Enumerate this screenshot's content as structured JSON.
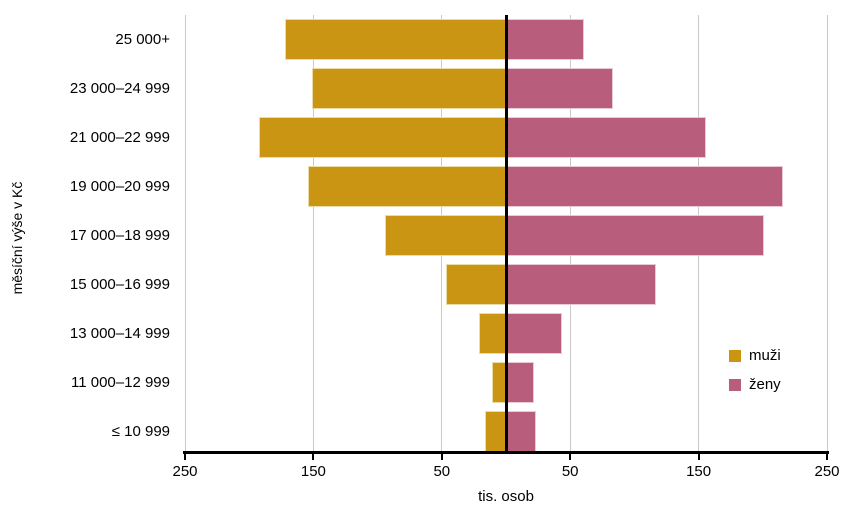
{
  "chart_data": {
    "type": "bar",
    "variant": "population-pyramid-horizontal",
    "title": "",
    "ylabel": "měsíční výše v Kč",
    "xlabel": "tis. osob",
    "categories": [
      "25 000+",
      "23 000–24 999",
      "21 000–22 999",
      "19 000–20 999",
      "17 000–18 999",
      "15 000–16 999",
      "13 000–14 999",
      "11 000–12 999",
      "≤ 10 999"
    ],
    "series": [
      {
        "name": "muži",
        "side": "left",
        "color": "#C99512",
        "values": [
          172,
          151,
          192,
          154,
          94,
          47,
          21,
          11,
          16
        ]
      },
      {
        "name": "ženy",
        "side": "right",
        "color": "#B95D7C",
        "values": [
          61,
          83,
          156,
          216,
          201,
          117,
          44,
          22,
          23
        ]
      }
    ],
    "x_axis": {
      "ticks": [
        "250",
        "150",
        "50",
        "50",
        "150",
        "250"
      ],
      "tick_values": [
        -250,
        -150,
        -50,
        50,
        150,
        250
      ],
      "range": [
        -250,
        250
      ],
      "grid": true,
      "zero_line": true
    },
    "legend": {
      "position": "right-middle",
      "entries": [
        "muži",
        "ženy"
      ]
    },
    "colors": {
      "grid": "#C9C9C9",
      "axis": "#000000",
      "text": "#000000"
    }
  }
}
